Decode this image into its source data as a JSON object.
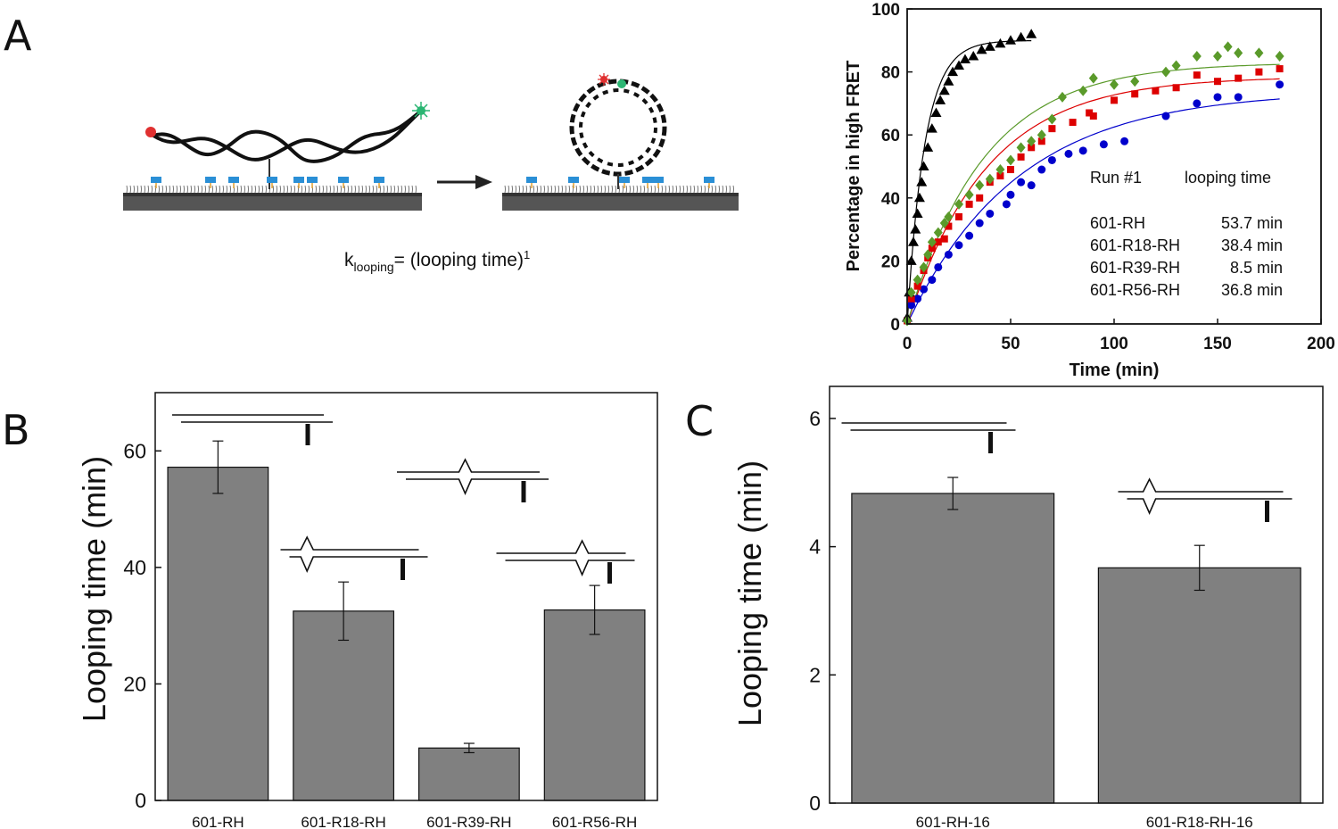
{
  "panels": {
    "a": {
      "letter": "A",
      "formula": {
        "k": "k",
        "sub": "looping",
        "eq": "= (looping time)",
        "sup": "1"
      }
    },
    "b": {
      "letter": "B"
    },
    "c": {
      "letter": "C"
    }
  },
  "colors": {
    "run1": "#0000cc",
    "run2": "#dd0000",
    "run3": "#000000",
    "run4": "#5a9a2a",
    "bar": "#808080",
    "surface": "#555555"
  },
  "chart_data": [
    {
      "type": "scatter",
      "panel": "A",
      "xlabel": "Time (min)",
      "ylabel": "Percentage in high FRET",
      "xlim": [
        0,
        200
      ],
      "ylim": [
        0,
        100
      ],
      "xticks": [
        0,
        50,
        100,
        150,
        200
      ],
      "yticks": [
        0,
        20,
        40,
        60,
        80,
        100
      ],
      "legend_title": [
        "Run #1",
        "looping time"
      ],
      "legend_position": "bottom-right",
      "series": [
        {
          "name": "601-RH",
          "looping_time_label": "53.7 min",
          "tau": 53.7,
          "plateau": 74,
          "marker": "circle",
          "x": [
            0,
            2,
            5,
            8,
            12,
            15,
            20,
            25,
            30,
            35,
            40,
            48,
            50,
            55,
            60,
            65,
            70,
            78,
            85,
            95,
            105,
            125,
            140,
            150,
            160,
            180
          ],
          "y": [
            1,
            6,
            8,
            11,
            14,
            18,
            22,
            25,
            28,
            32,
            35,
            38,
            41,
            45,
            44,
            49,
            52,
            54,
            55,
            57,
            58,
            66,
            70,
            72,
            72,
            76
          ]
        },
        {
          "name": "601-R18-RH",
          "looping_time_label": "38.4 min",
          "tau": 38.4,
          "plateau": 78.5,
          "marker": "square",
          "x": [
            0,
            2,
            5,
            8,
            10,
            12,
            15,
            18,
            20,
            25,
            30,
            35,
            40,
            45,
            50,
            55,
            60,
            65,
            70,
            80,
            88,
            90,
            100,
            110,
            120,
            130,
            140,
            150,
            160,
            170,
            180
          ],
          "y": [
            1,
            8,
            12,
            17,
            21,
            24,
            26,
            27,
            31,
            34,
            38,
            40,
            45,
            47,
            49,
            53,
            56,
            58,
            62,
            64,
            67,
            66,
            71,
            73,
            74,
            75,
            79,
            77,
            78,
            80,
            81
          ]
        },
        {
          "name": "601-R39-RH",
          "looping_time_label": "8.5 min",
          "tau": 8.5,
          "plateau": 90,
          "marker": "triangle",
          "x": [
            0,
            1,
            2,
            3,
            4,
            5,
            6,
            7,
            8,
            10,
            12,
            14,
            16,
            18,
            20,
            22,
            25,
            28,
            32,
            36,
            40,
            45,
            50,
            55,
            60
          ],
          "y": [
            2,
            10,
            20,
            26,
            30,
            35,
            40,
            45,
            50,
            56,
            62,
            67,
            71,
            74,
            77,
            80,
            82,
            84,
            85,
            87,
            88,
            89,
            90,
            91,
            92
          ]
        },
        {
          "name": "601-R56-RH",
          "looping_time_label": "36.8 min",
          "tau": 36.8,
          "plateau": 83,
          "marker": "diamond",
          "x": [
            0,
            2,
            5,
            8,
            10,
            12,
            15,
            18,
            20,
            25,
            30,
            35,
            40,
            45,
            50,
            55,
            60,
            65,
            70,
            75,
            85,
            90,
            100,
            110,
            125,
            130,
            140,
            150,
            155,
            160,
            170,
            180
          ],
          "y": [
            1,
            10,
            14,
            18,
            22,
            26,
            29,
            32,
            34,
            38,
            41,
            44,
            46,
            49,
            52,
            56,
            58,
            60,
            65,
            72,
            74,
            78,
            76,
            77,
            80,
            82,
            85,
            85,
            88,
            86,
            86,
            85
          ]
        }
      ]
    },
    {
      "type": "bar",
      "panel": "B",
      "ylabel": "Looping time (min)",
      "ylim": [
        0,
        70
      ],
      "yticks": [
        0,
        20,
        40,
        60
      ],
      "categories": [
        "601-RH",
        "601-R18-RH",
        "601-R39-RH",
        "601-R56-RH"
      ],
      "values": [
        57.2,
        32.5,
        9.0,
        32.7
      ],
      "errors": [
        4.5,
        5.0,
        0.8,
        4.2
      ],
      "construct_kinks": [
        [],
        [
          0.18
        ],
        [
          0.45
        ],
        [
          0.62
        ]
      ]
    },
    {
      "type": "bar",
      "panel": "C",
      "ylabel": "Looping time (min)",
      "ylim": [
        0,
        6.5
      ],
      "yticks": [
        0,
        2,
        4,
        6
      ],
      "categories": [
        "601-RH-16",
        "601-R18-RH-16"
      ],
      "values": [
        4.83,
        3.67
      ],
      "errors": [
        0.25,
        0.35
      ],
      "construct_kinks": [
        [],
        [
          0.18
        ]
      ]
    }
  ]
}
